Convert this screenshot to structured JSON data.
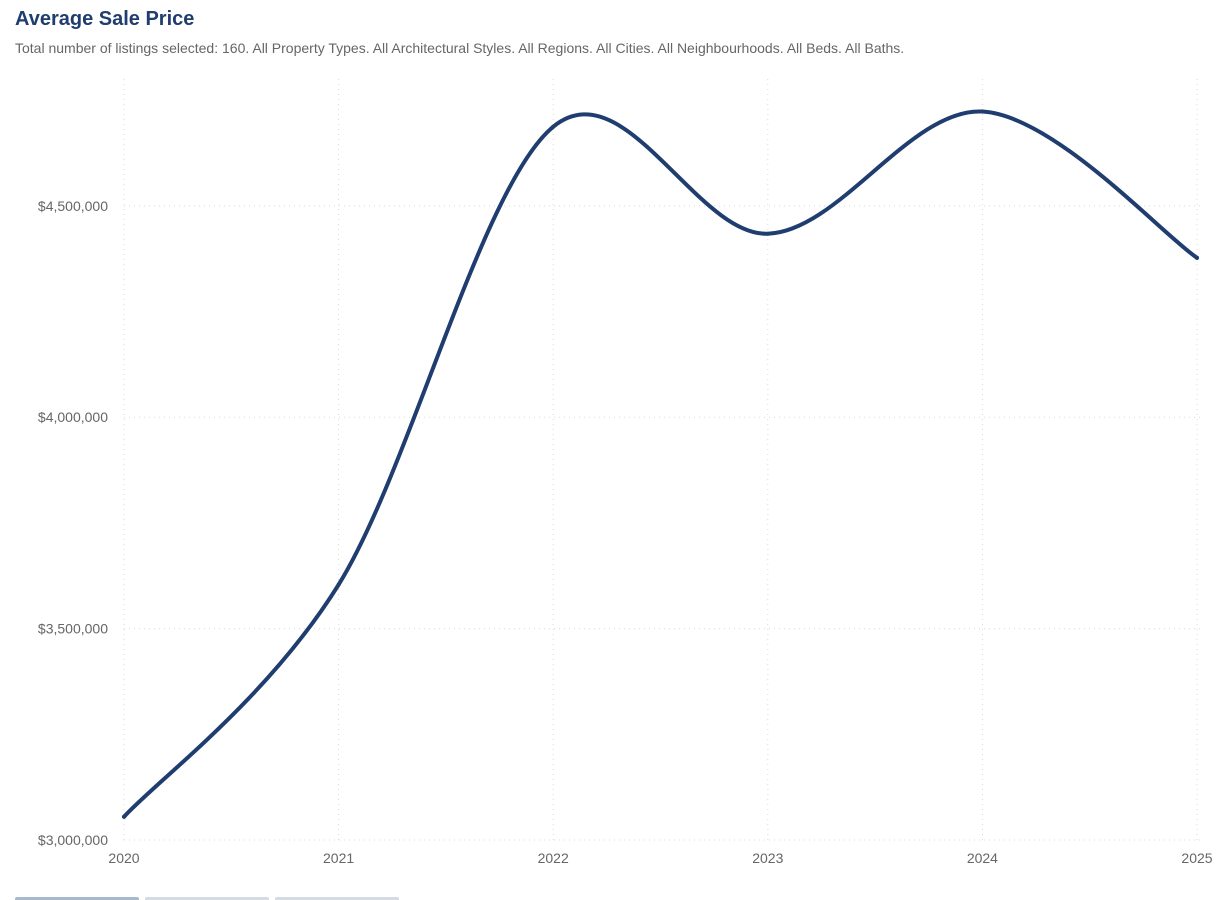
{
  "header": {
    "title": "Average Sale Price",
    "subtitle": "Total number of listings selected: 160. All Property Types. All Architectural Styles. All Regions. All Cities. All Neighbourhoods. All Beds. All Baths."
  },
  "chart_data": {
    "type": "line",
    "title": "Average Sale Price",
    "subtitle": "Total number of listings selected: 160. All Property Types. All Architectural Styles. All Regions. All Cities. All Neighbourhoods. All Beds. All Baths.",
    "x": [
      2020,
      2021,
      2022,
      2023,
      2024,
      2025
    ],
    "x_tick_labels": [
      "2020",
      "2021",
      "2022",
      "2023",
      "2024",
      "2025"
    ],
    "series": [
      {
        "values": [
          3055000,
          3604000,
          4687000,
          4434000,
          4723000,
          4377000
        ],
        "color": "#1f3d6e"
      }
    ],
    "y_ticks": [
      3000000,
      3500000,
      4000000,
      4500000
    ],
    "y_tick_labels": [
      "$3,000,000",
      "$3,500,000",
      "$4,000,000",
      "$4,500,000"
    ],
    "ylim": [
      3000000,
      4800000
    ],
    "xlim": [
      2020,
      2025
    ],
    "grid": true,
    "smooth": true,
    "legend": "none"
  }
}
